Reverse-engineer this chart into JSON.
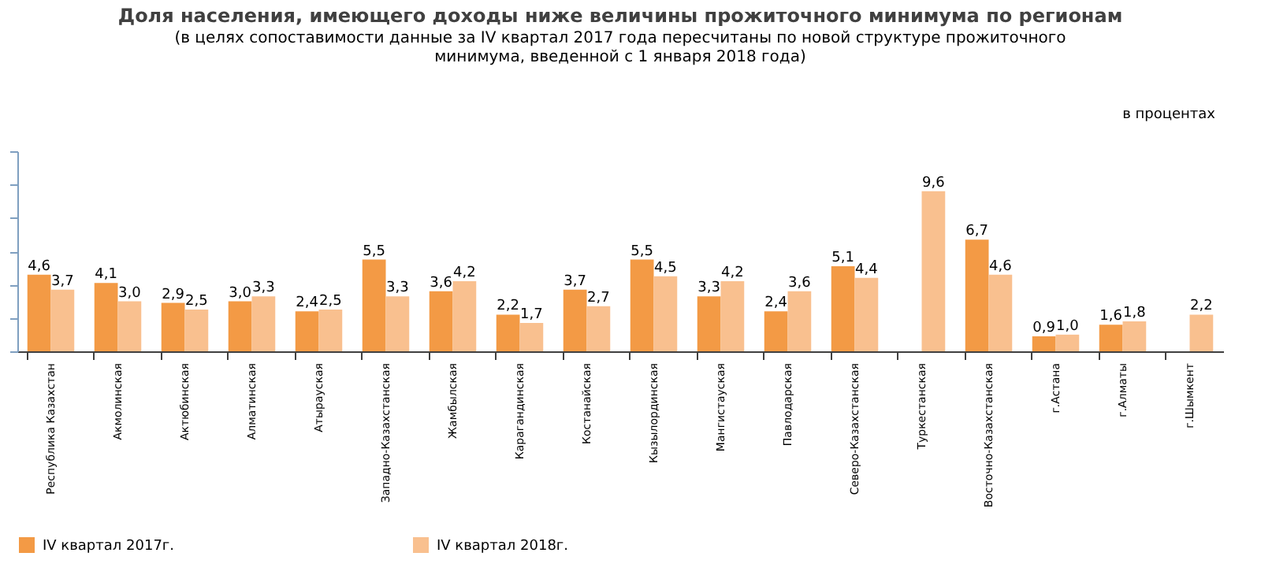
{
  "chart_data": {
    "type": "bar",
    "title": "Доля населения, имеющего доходы ниже величины  прожиточного  минимума  по регионам",
    "subtitle": [
      "(в целях сопоставимости данные за IV квартал 2017 года пересчитаны по новой структуре прожиточного",
      "минимума, введенной с 1 января 2018 года)"
    ],
    "annotations": [
      "в процентах"
    ],
    "categories": [
      "Республика Казахстан",
      "Акмолинская",
      "Актюбинская",
      "Алматинская",
      "Атырауская",
      "Западно-Казахстанская",
      "Жамбылская",
      "Карагандинская",
      "Костанайская",
      "Кызылординская",
      "Мангистауская",
      "Павлодарская",
      "Северо-Казахстанская",
      "Туркестанская",
      "Восточно-Казахстанская",
      "г.Астана",
      "г.Алматы",
      "г.Шымкент"
    ],
    "series": [
      {
        "name": "IV квартал 2017г.",
        "color": "#f39a45",
        "values": [
          4.6,
          4.1,
          2.9,
          3.0,
          2.4,
          5.5,
          3.6,
          2.2,
          3.7,
          5.5,
          3.3,
          2.4,
          5.1,
          null,
          6.7,
          0.9,
          1.6,
          null
        ],
        "value_labels": [
          "4,6",
          "4,1",
          "2,9",
          "3,0",
          "2,4",
          "5,5",
          "3,6",
          "2,2",
          "3,7",
          "5,5",
          "3,3",
          "2,4",
          "5,1",
          null,
          "6,7",
          "0,9",
          "1,6",
          null
        ]
      },
      {
        "name": "IV квартал 2018г.",
        "color": "#f9c08f",
        "values": [
          3.7,
          3.0,
          2.5,
          3.3,
          2.5,
          3.3,
          4.2,
          1.7,
          2.7,
          4.5,
          4.2,
          3.6,
          4.4,
          9.6,
          4.6,
          1.0,
          1.8,
          2.2
        ],
        "value_labels": [
          "3,7",
          "3,0",
          "2,5",
          "3,3",
          "2,5",
          "3,3",
          "4,2",
          "1,7",
          "2,7",
          "4,5",
          "4,2",
          "3,6",
          "4,4",
          "9,6",
          "4,6",
          "1,0",
          "1,8",
          "2,2"
        ]
      }
    ],
    "ylim": [
      0,
      12
    ],
    "yticks": [
      {
        "value": 0,
        "label": null
      },
      {
        "value": 2,
        "label": null
      },
      {
        "value": 4,
        "label": null
      },
      {
        "value": 6,
        "label": null
      },
      {
        "value": 8,
        "label": null
      },
      {
        "value": 10,
        "label": null
      },
      {
        "value": 12,
        "label": null
      }
    ],
    "tick_labels": "x",
    "grid": false,
    "legend": "bottom"
  }
}
